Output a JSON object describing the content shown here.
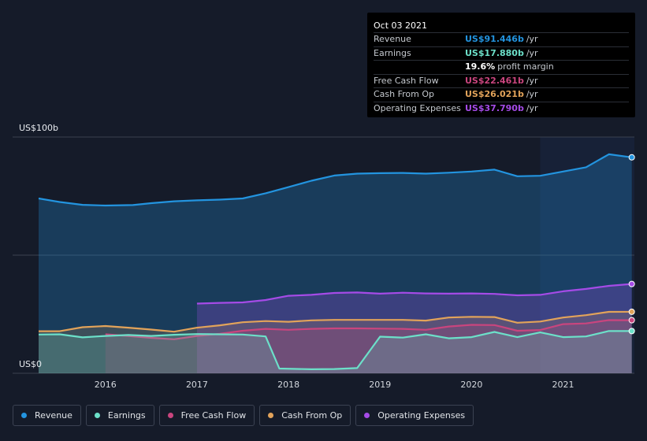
{
  "tooltip": {
    "date": "Oct 03 2021",
    "rows": [
      {
        "label": "Revenue",
        "value": "US$91.446b",
        "unit": "/yr",
        "color": "#2394df"
      },
      {
        "label": "Earnings",
        "value": "US$17.880b",
        "unit": "/yr",
        "color": "#6ce0c9"
      },
      {
        "label": "",
        "value": "19.6%",
        "unit": "profit margin",
        "color": "#ffffff"
      },
      {
        "label": "Free Cash Flow",
        "value": "US$22.461b",
        "unit": "/yr",
        "color": "#c9457e"
      },
      {
        "label": "Cash From Op",
        "value": "US$26.021b",
        "unit": "/yr",
        "color": "#e2a35a"
      },
      {
        "label": "Operating Expenses",
        "value": "US$37.790b",
        "unit": "/yr",
        "color": "#a54be7"
      }
    ]
  },
  "legend": [
    {
      "label": "Revenue",
      "color": "#2394df"
    },
    {
      "label": "Earnings",
      "color": "#6ce0c9"
    },
    {
      "label": "Free Cash Flow",
      "color": "#c9457e"
    },
    {
      "label": "Cash From Op",
      "color": "#e2a35a"
    },
    {
      "label": "Operating Expenses",
      "color": "#a54be7"
    }
  ],
  "chart_data": {
    "type": "area",
    "y_top_label": "US$100b",
    "y_bottom_label": "US$0",
    "ylim": [
      0,
      100
    ],
    "xlim": [
      2015.27,
      2021.77
    ],
    "xticks": [
      2016,
      2017,
      2018,
      2019,
      2020,
      2021
    ],
    "grid": true,
    "highlight_start": 2020.75,
    "series": [
      {
        "name": "Revenue",
        "color": "#2394df",
        "points": [
          [
            2015.27,
            74.0
          ],
          [
            2015.5,
            72.5
          ],
          [
            2015.75,
            71.3
          ],
          [
            2016.0,
            71.0
          ],
          [
            2016.3,
            71.2
          ],
          [
            2016.5,
            72.0
          ],
          [
            2016.75,
            72.8
          ],
          [
            2017.0,
            73.2
          ],
          [
            2017.25,
            73.5
          ],
          [
            2017.5,
            74.0
          ],
          [
            2017.75,
            76.2
          ],
          [
            2018.0,
            78.8
          ],
          [
            2018.25,
            81.5
          ],
          [
            2018.5,
            83.7
          ],
          [
            2018.75,
            84.5
          ],
          [
            2019.0,
            84.7
          ],
          [
            2019.25,
            84.8
          ],
          [
            2019.5,
            84.5
          ],
          [
            2019.75,
            84.9
          ],
          [
            2020.0,
            85.4
          ],
          [
            2020.25,
            86.2
          ],
          [
            2020.5,
            83.4
          ],
          [
            2020.75,
            83.6
          ],
          [
            2021.0,
            85.4
          ],
          [
            2021.25,
            87.2
          ],
          [
            2021.5,
            92.7
          ],
          [
            2021.75,
            91.4
          ]
        ]
      },
      {
        "name": "Operating Expenses",
        "color": "#a54be7",
        "points": [
          [
            2017.0,
            29.5
          ],
          [
            2017.25,
            29.8
          ],
          [
            2017.5,
            30.0
          ],
          [
            2017.75,
            31.0
          ],
          [
            2018.0,
            32.8
          ],
          [
            2018.25,
            33.2
          ],
          [
            2018.5,
            34.0
          ],
          [
            2018.75,
            34.2
          ],
          [
            2019.0,
            33.7
          ],
          [
            2019.25,
            34.1
          ],
          [
            2019.5,
            33.8
          ],
          [
            2019.75,
            33.7
          ],
          [
            2020.0,
            33.8
          ],
          [
            2020.25,
            33.6
          ],
          [
            2020.5,
            33.0
          ],
          [
            2020.75,
            33.2
          ],
          [
            2021.0,
            34.7
          ],
          [
            2021.25,
            35.7
          ],
          [
            2021.5,
            37.0
          ],
          [
            2021.75,
            37.79
          ]
        ]
      },
      {
        "name": "Cash From Op",
        "color": "#e2a35a",
        "points": [
          [
            2015.27,
            17.8
          ],
          [
            2015.5,
            17.8
          ],
          [
            2015.75,
            19.5
          ],
          [
            2016.0,
            20.0
          ],
          [
            2016.25,
            19.3
          ],
          [
            2016.5,
            18.5
          ],
          [
            2016.75,
            17.6
          ],
          [
            2017.0,
            19.3
          ],
          [
            2017.25,
            20.3
          ],
          [
            2017.5,
            21.6
          ],
          [
            2017.75,
            22.1
          ],
          [
            2018.0,
            21.8
          ],
          [
            2018.25,
            22.4
          ],
          [
            2018.5,
            22.6
          ],
          [
            2018.75,
            22.6
          ],
          [
            2019.0,
            22.6
          ],
          [
            2019.25,
            22.6
          ],
          [
            2019.5,
            22.3
          ],
          [
            2019.75,
            23.6
          ],
          [
            2020.0,
            23.9
          ],
          [
            2020.25,
            23.8
          ],
          [
            2020.5,
            21.4
          ],
          [
            2020.75,
            21.9
          ],
          [
            2021.0,
            23.6
          ],
          [
            2021.25,
            24.6
          ],
          [
            2021.5,
            26.0
          ],
          [
            2021.75,
            26.021
          ]
        ]
      },
      {
        "name": "Free Cash Flow",
        "color": "#c9457e",
        "points": [
          [
            2016.0,
            16.5
          ],
          [
            2016.25,
            15.8
          ],
          [
            2016.5,
            15.0
          ],
          [
            2016.75,
            14.4
          ],
          [
            2017.0,
            15.8
          ],
          [
            2017.25,
            16.7
          ],
          [
            2017.5,
            18.0
          ],
          [
            2017.75,
            18.8
          ],
          [
            2018.0,
            18.4
          ],
          [
            2018.25,
            18.8
          ],
          [
            2018.5,
            19.0
          ],
          [
            2018.75,
            19.0
          ],
          [
            2019.0,
            18.9
          ],
          [
            2019.25,
            18.8
          ],
          [
            2019.5,
            18.4
          ],
          [
            2019.75,
            19.8
          ],
          [
            2020.0,
            20.5
          ],
          [
            2020.25,
            20.4
          ],
          [
            2020.5,
            18.0
          ],
          [
            2020.75,
            18.3
          ],
          [
            2021.0,
            20.8
          ],
          [
            2021.25,
            21.1
          ],
          [
            2021.5,
            22.5
          ],
          [
            2021.75,
            22.461
          ]
        ]
      },
      {
        "name": "Earnings",
        "color": "#6ce0c9",
        "points": [
          [
            2015.27,
            16.4
          ],
          [
            2015.5,
            16.5
          ],
          [
            2015.75,
            15.2
          ],
          [
            2016.0,
            15.8
          ],
          [
            2016.25,
            16.2
          ],
          [
            2016.5,
            15.8
          ],
          [
            2016.75,
            16.3
          ],
          [
            2017.0,
            16.6
          ],
          [
            2017.25,
            16.5
          ],
          [
            2017.5,
            16.4
          ],
          [
            2017.75,
            15.6
          ],
          [
            2017.9,
            2.0
          ],
          [
            2018.25,
            1.7
          ],
          [
            2018.5,
            1.8
          ],
          [
            2018.75,
            2.2
          ],
          [
            2019.0,
            15.5
          ],
          [
            2019.25,
            15.1
          ],
          [
            2019.5,
            16.5
          ],
          [
            2019.75,
            14.8
          ],
          [
            2020.0,
            15.3
          ],
          [
            2020.25,
            17.5
          ],
          [
            2020.5,
            15.3
          ],
          [
            2020.75,
            17.3
          ],
          [
            2021.0,
            15.3
          ],
          [
            2021.25,
            15.6
          ],
          [
            2021.5,
            17.9
          ],
          [
            2021.75,
            17.88
          ]
        ]
      }
    ]
  }
}
